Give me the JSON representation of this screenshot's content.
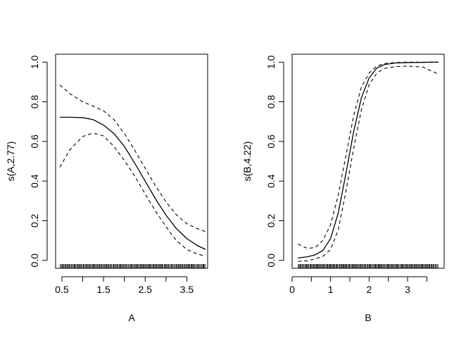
{
  "chart_data": [
    {
      "type": "line",
      "title": "",
      "xlabel": "A",
      "ylabel": "s(A,2.77)",
      "xlim": [
        0.35,
        4.0
      ],
      "ylim": [
        -0.04,
        1.04
      ],
      "xticks": [
        0.5,
        1.5,
        2.5,
        3.5
      ],
      "xtick_labels": [
        "0.5",
        "1.5",
        "2.5",
        "3.5"
      ],
      "minor_xticks": [
        1.0,
        2.0,
        3.0
      ],
      "yticks": [
        0.0,
        0.2,
        0.4,
        0.6,
        0.8,
        1.0
      ],
      "ytick_labels": [
        "0.0",
        "0.2",
        "0.4",
        "0.6",
        "0.8",
        "1.0"
      ],
      "grid": false,
      "series": [
        {
          "style": "solid",
          "x": [
            0.45,
            0.7,
            1.0,
            1.25,
            1.5,
            1.75,
            2.0,
            2.25,
            2.5,
            2.75,
            3.0,
            3.25,
            3.5,
            3.75,
            3.95
          ],
          "y": [
            0.722,
            0.722,
            0.72,
            0.71,
            0.683,
            0.64,
            0.575,
            0.49,
            0.4,
            0.31,
            0.228,
            0.16,
            0.11,
            0.075,
            0.055
          ]
        },
        {
          "style": "dashed",
          "x": [
            0.45,
            0.7,
            1.0,
            1.25,
            1.5,
            1.75,
            2.0,
            2.25,
            2.5,
            2.75,
            3.0,
            3.25,
            3.5,
            3.75,
            3.95
          ],
          "y": [
            0.885,
            0.84,
            0.8,
            0.778,
            0.755,
            0.71,
            0.64,
            0.555,
            0.465,
            0.375,
            0.295,
            0.23,
            0.185,
            0.16,
            0.145
          ]
        },
        {
          "style": "dashed",
          "x": [
            0.45,
            0.7,
            1.0,
            1.25,
            1.5,
            1.75,
            2.0,
            2.25,
            2.5,
            2.75,
            3.0,
            3.25,
            3.5,
            3.75,
            3.95
          ],
          "y": [
            0.47,
            0.56,
            0.625,
            0.642,
            0.628,
            0.575,
            0.505,
            0.425,
            0.335,
            0.248,
            0.17,
            0.1,
            0.055,
            0.032,
            0.022
          ]
        }
      ],
      "rug_range": [
        0.45,
        3.95
      ],
      "rug_count": 230
    },
    {
      "type": "line",
      "title": "",
      "xlabel": "B",
      "ylabel": "s(B,4.22)",
      "xlim": [
        0.0,
        3.95
      ],
      "ylim": [
        -0.04,
        1.04
      ],
      "xticks": [
        0,
        1,
        2,
        3
      ],
      "xtick_labels": [
        "0",
        "1",
        "2",
        "3"
      ],
      "minor_xticks": [
        0.5,
        1.5,
        2.5,
        3.5
      ],
      "yticks": [
        0.0,
        0.2,
        0.4,
        0.6,
        0.8,
        1.0
      ],
      "ytick_labels": [
        "0.0",
        "0.2",
        "0.4",
        "0.6",
        "0.8",
        "1.0"
      ],
      "grid": false,
      "series": [
        {
          "style": "solid",
          "x": [
            0.15,
            0.4,
            0.6,
            0.8,
            1.0,
            1.2,
            1.4,
            1.6,
            1.8,
            2.0,
            2.2,
            2.4,
            2.7,
            3.0,
            3.4,
            3.8
          ],
          "y": [
            0.012,
            0.018,
            0.028,
            0.05,
            0.11,
            0.24,
            0.44,
            0.65,
            0.82,
            0.92,
            0.97,
            0.988,
            0.996,
            0.998,
            0.999,
            1.0
          ]
        },
        {
          "style": "dashed",
          "x": [
            0.15,
            0.4,
            0.6,
            0.8,
            1.0,
            1.2,
            1.4,
            1.6,
            1.8,
            2.0,
            2.2,
            2.4,
            2.7,
            3.0,
            3.4,
            3.8
          ],
          "y": [
            0.082,
            0.06,
            0.065,
            0.1,
            0.18,
            0.33,
            0.53,
            0.73,
            0.875,
            0.945,
            0.98,
            0.993,
            0.998,
            1.0,
            1.0,
            1.0
          ]
        },
        {
          "style": "dashed",
          "x": [
            0.15,
            0.4,
            0.6,
            0.8,
            1.0,
            1.2,
            1.4,
            1.6,
            1.8,
            2.0,
            2.2,
            2.4,
            2.7,
            3.0,
            3.4,
            3.8
          ],
          "y": [
            -0.005,
            -0.002,
            0.008,
            0.02,
            0.055,
            0.155,
            0.35,
            0.565,
            0.76,
            0.885,
            0.945,
            0.968,
            0.978,
            0.98,
            0.975,
            0.94
          ]
        }
      ],
      "rug_range": [
        0.15,
        3.8
      ],
      "rug_count": 230
    }
  ]
}
